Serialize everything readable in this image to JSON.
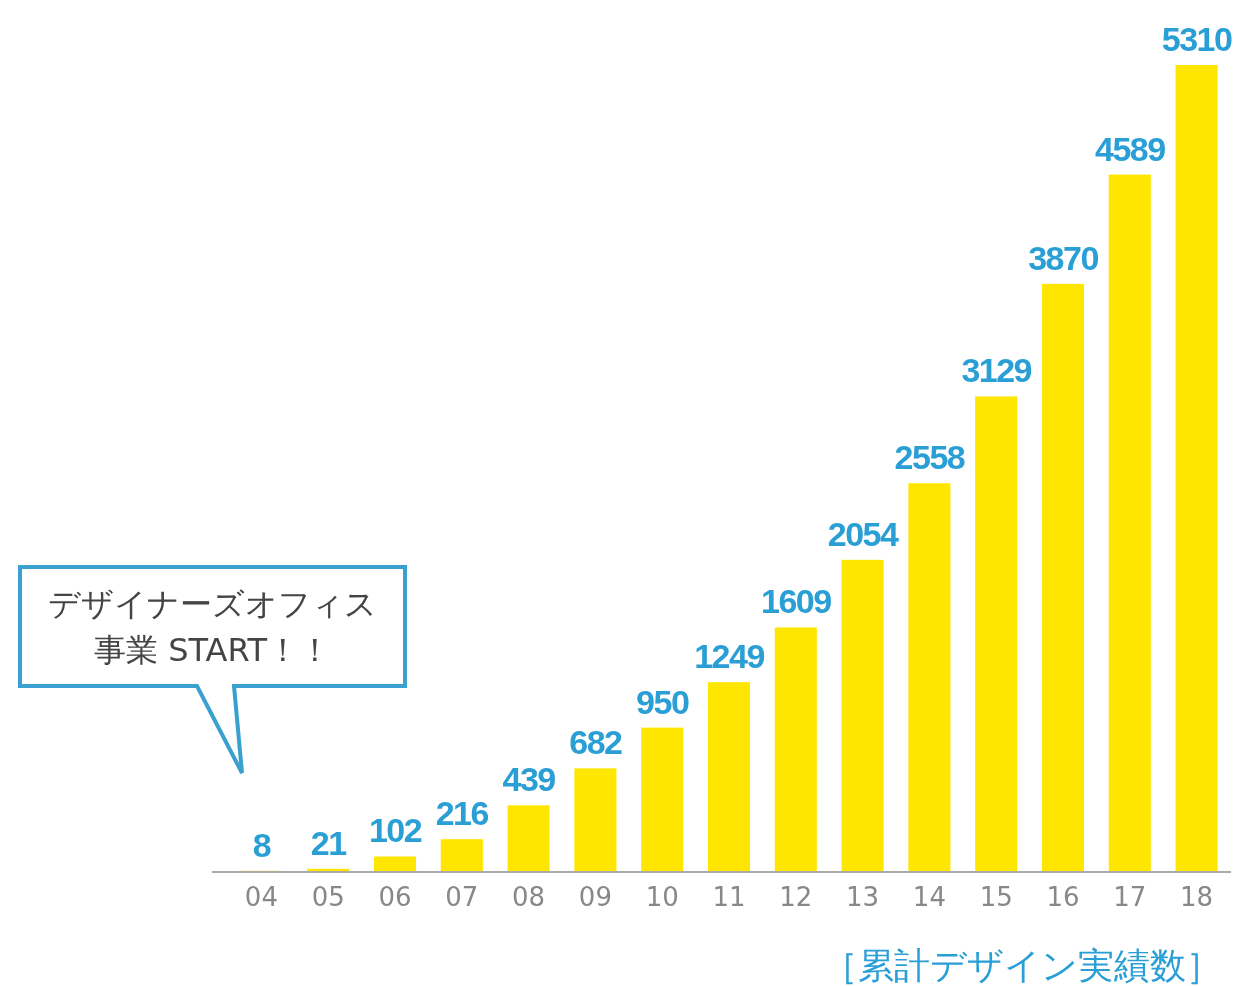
{
  "chart_data": {
    "type": "bar",
    "xlabel": "［累計デザイン実績数］",
    "categories": [
      "04",
      "05",
      "06",
      "07",
      "08",
      "09",
      "10",
      "11",
      "12",
      "13",
      "14",
      "15",
      "16",
      "17",
      "18"
    ],
    "values": [
      8,
      21,
      102,
      216,
      439,
      682,
      950,
      1249,
      1609,
      2054,
      2558,
      3129,
      3870,
      4589,
      5310
    ],
    "color": "#ffe600",
    "data_labels": true,
    "grid": false,
    "annotations": [
      "デザイナーズオフィス事業 START！！"
    ]
  }
}
